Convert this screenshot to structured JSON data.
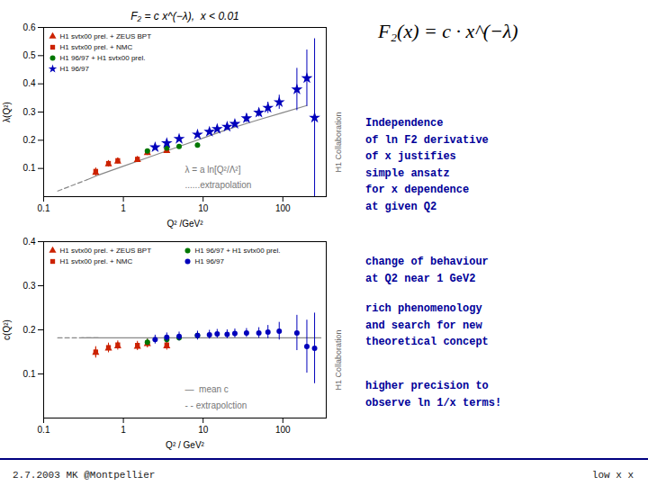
{
  "title": "F₂(x) = c · x^(−λ)",
  "annotations": [
    {
      "text": "Independence\nof ln F2 derivative\nof x justifies\nsimple ansatz\nfor x dependence\nat given Q2",
      "color": "#000099"
    },
    {
      "text": "change of behaviour\nat Q2 near 1 GeV2",
      "color": "#000099"
    },
    {
      "text": "rich phenomenology\nand search for new\ntheoretical concept",
      "color": "#000099"
    },
    {
      "text": "higher precision to\nobserve ln 1/x terms!",
      "color": "#000099"
    },
    {
      "text": "2.7.2003 MK @Montpellier"
    },
    {
      "text": "low x x"
    }
  ],
  "chart_data": [
    {
      "type": "scatter",
      "title": "F₂ = c x^(−λ),  x < 0.01",
      "xlabel": "Q² /GeV²",
      "ylabel": "λ(Q²)",
      "log": "x",
      "xlim": [
        0.1,
        350.0
      ],
      "xticks": [
        0.1,
        1,
        10,
        100
      ],
      "ylim": [
        0.0,
        0.6
      ],
      "yticks": [
        0.1,
        0.2,
        0.3,
        0.4,
        0.5,
        0.6
      ],
      "grid": false,
      "legend": "upper left",
      "annotations": [
        "H1 Collaboration"
      ],
      "series": [
        {
          "name": "λ = a ln[Q²/Λ²]",
          "type": "line",
          "color": "#888888",
          "line_style": "solid",
          "x": [
            0.35,
            0.5,
            1.0,
            2.0,
            5.0,
            10.0,
            20.0,
            50.0,
            100.0,
            200.0
          ],
          "values": [
            0.06,
            0.078,
            0.108,
            0.138,
            0.178,
            0.208,
            0.238,
            0.273,
            0.298,
            0.323
          ]
        },
        {
          "name": "......extrapolation",
          "type": "line",
          "color": "#888888",
          "line_style": "dashed",
          "x": [
            0.15,
            0.35
          ],
          "values": [
            0.02,
            0.06
          ]
        },
        {
          "name": "H1 svtx00 prel. + ZEUS BPT",
          "type": "scatter",
          "color": "#cc2200",
          "marker": "triangle",
          "x": [
            0.45,
            0.65,
            0.85,
            1.5,
            2.0,
            3.5
          ],
          "values": [
            0.085,
            0.115,
            0.125,
            0.13,
            0.155,
            0.162
          ],
          "errors": [
            0.012,
            0.01,
            0.009,
            0.009,
            0.009,
            0.009
          ]
        },
        {
          "name": "H1 svtx00 prel. + NMC",
          "type": "scatter",
          "color": "#cc2200",
          "marker": "square",
          "x": [
            0.45,
            0.65,
            0.85,
            1.5,
            2.0,
            3.5
          ],
          "values": [
            0.09,
            0.118,
            0.128,
            0.133,
            0.158,
            0.165
          ],
          "errors": [
            0.012,
            0.01,
            0.009,
            0.009,
            0.009,
            0.009
          ]
        },
        {
          "name": "H1 96/97 + H1 svtx00 prel.",
          "type": "scatter",
          "color": "#007700",
          "marker": "circle",
          "x": [
            2.0,
            3.5,
            5.0,
            8.5
          ],
          "values": [
            0.162,
            0.172,
            0.178,
            0.183
          ],
          "errors": [
            0.007,
            0.007,
            0.007,
            0.007
          ]
        },
        {
          "name": "H1 96/97",
          "type": "scatter",
          "color": "#0000bb",
          "marker": "star",
          "x": [
            2.5,
            3.5,
            5.0,
            8.5,
            12.0,
            15.0,
            20.0,
            25.0,
            35.0,
            50.0,
            65.0,
            90.0,
            150.0,
            200.0,
            250.0
          ],
          "values": [
            0.175,
            0.19,
            0.205,
            0.22,
            0.23,
            0.24,
            0.248,
            0.258,
            0.278,
            0.298,
            0.315,
            0.335,
            0.38,
            0.42,
            0.28
          ],
          "errors": [
            0.01,
            0.01,
            0.01,
            0.01,
            0.01,
            0.01,
            0.012,
            0.012,
            0.015,
            0.015,
            0.02,
            0.025,
            0.075,
            0.1,
            0.28
          ]
        }
      ]
    },
    {
      "type": "scatter",
      "xlabel": "Q² / GeV²",
      "ylabel": "c(Q²)",
      "log": "x",
      "xlim": [
        0.1,
        350.0
      ],
      "xticks": [
        0.1,
        1,
        10,
        100
      ],
      "ylim": [
        0.0,
        0.4
      ],
      "yticks": [
        0.1,
        0.2,
        0.3,
        0.4
      ],
      "grid": false,
      "legend": "upper left",
      "annotations": [
        "H1 Collaboration"
      ],
      "series": [
        {
          "name": "—  mean c",
          "type": "line",
          "color": "#888888",
          "line_style": "solid",
          "x": [
            0.3,
            300.0
          ],
          "values": [
            0.182,
            0.182
          ]
        },
        {
          "name": "- - extrapolction",
          "type": "line",
          "color": "#888888",
          "line_style": "dashed",
          "x": [
            0.15,
            0.5
          ],
          "values": [
            0.182,
            0.182
          ]
        },
        {
          "name": "H1 svtx00 prel. + ZEUS BPT",
          "type": "scatter",
          "color": "#cc2200",
          "marker": "triangle",
          "x": [
            0.45,
            0.65,
            0.85,
            1.5,
            2.0,
            3.5
          ],
          "values": [
            0.148,
            0.158,
            0.163,
            0.162,
            0.168,
            0.163
          ],
          "errors": [
            0.012,
            0.01,
            0.009,
            0.009,
            0.009,
            0.009
          ]
        },
        {
          "name": "H1 svtx00 prel. + NMC",
          "type": "scatter",
          "color": "#cc2200",
          "marker": "square",
          "x": [
            0.45,
            0.65,
            0.85,
            1.5,
            2.0,
            3.5
          ],
          "values": [
            0.15,
            0.16,
            0.166,
            0.165,
            0.17,
            0.166
          ],
          "errors": [
            0.012,
            0.01,
            0.009,
            0.009,
            0.009,
            0.009
          ]
        },
        {
          "name": "H1 96/97 + H1 svtx00 prel.",
          "type": "scatter",
          "color": "#007700",
          "marker": "circle",
          "x": [
            2.0,
            3.5,
            5.0,
            8.5
          ],
          "values": [
            0.172,
            0.178,
            0.182,
            0.187
          ],
          "errors": [
            0.007,
            0.007,
            0.007,
            0.007
          ]
        },
        {
          "name": "H1 96/97",
          "type": "scatter",
          "color": "#0000bb",
          "marker": "circle",
          "x": [
            2.5,
            3.5,
            5.0,
            8.5,
            12.0,
            15.0,
            20.0,
            25.0,
            35.0,
            50.0,
            65.0,
            90.0,
            150.0,
            200.0,
            250.0
          ],
          "values": [
            0.178,
            0.183,
            0.185,
            0.187,
            0.189,
            0.191,
            0.19,
            0.192,
            0.193,
            0.193,
            0.195,
            0.197,
            0.193,
            0.162,
            0.158
          ],
          "errors": [
            0.01,
            0.01,
            0.01,
            0.01,
            0.01,
            0.01,
            0.01,
            0.01,
            0.01,
            0.012,
            0.015,
            0.02,
            0.04,
            0.06,
            0.08
          ]
        }
      ]
    }
  ]
}
